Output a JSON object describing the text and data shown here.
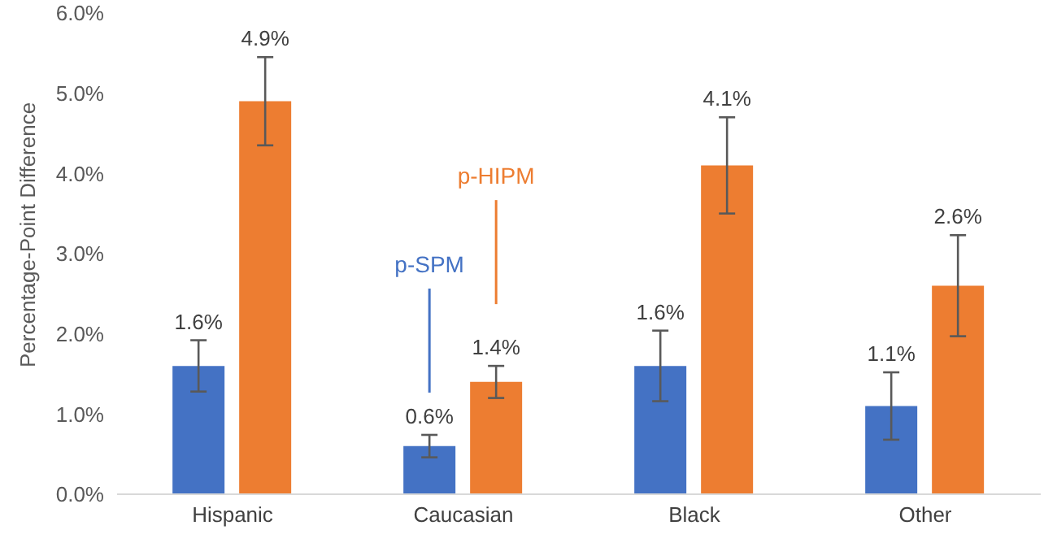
{
  "chart_data": {
    "type": "bar",
    "ylabel": "Percentage-Point Difference",
    "categories": [
      "Hispanic",
      "Caucasian",
      "Black",
      "Other"
    ],
    "series": [
      {
        "name": "p-SPM",
        "color": "#4472c4",
        "values": [
          1.6,
          0.6,
          1.6,
          1.1
        ],
        "errors": [
          0.32,
          0.14,
          0.44,
          0.42
        ],
        "value_labels": [
          "1.6%",
          "0.6%",
          "1.6%",
          "1.1%"
        ]
      },
      {
        "name": "p-HIPM",
        "color": "#ed7d31",
        "values": [
          4.9,
          1.4,
          4.1,
          2.6
        ],
        "errors": [
          0.55,
          0.2,
          0.6,
          0.63
        ],
        "value_labels": [
          "4.9%",
          "1.4%",
          "4.1%",
          "2.6%"
        ]
      }
    ],
    "ylim": [
      0,
      6
    ],
    "yticks": [
      {
        "value": 0,
        "label": "0.0%"
      },
      {
        "value": 1,
        "label": "1.0%"
      },
      {
        "value": 2,
        "label": "2.0%"
      },
      {
        "value": 3,
        "label": "3.0%"
      },
      {
        "value": 4,
        "label": "4.0%"
      },
      {
        "value": 5,
        "label": "5.0%"
      },
      {
        "value": 6,
        "label": "6.0%"
      }
    ],
    "grid": false,
    "legend": false
  }
}
